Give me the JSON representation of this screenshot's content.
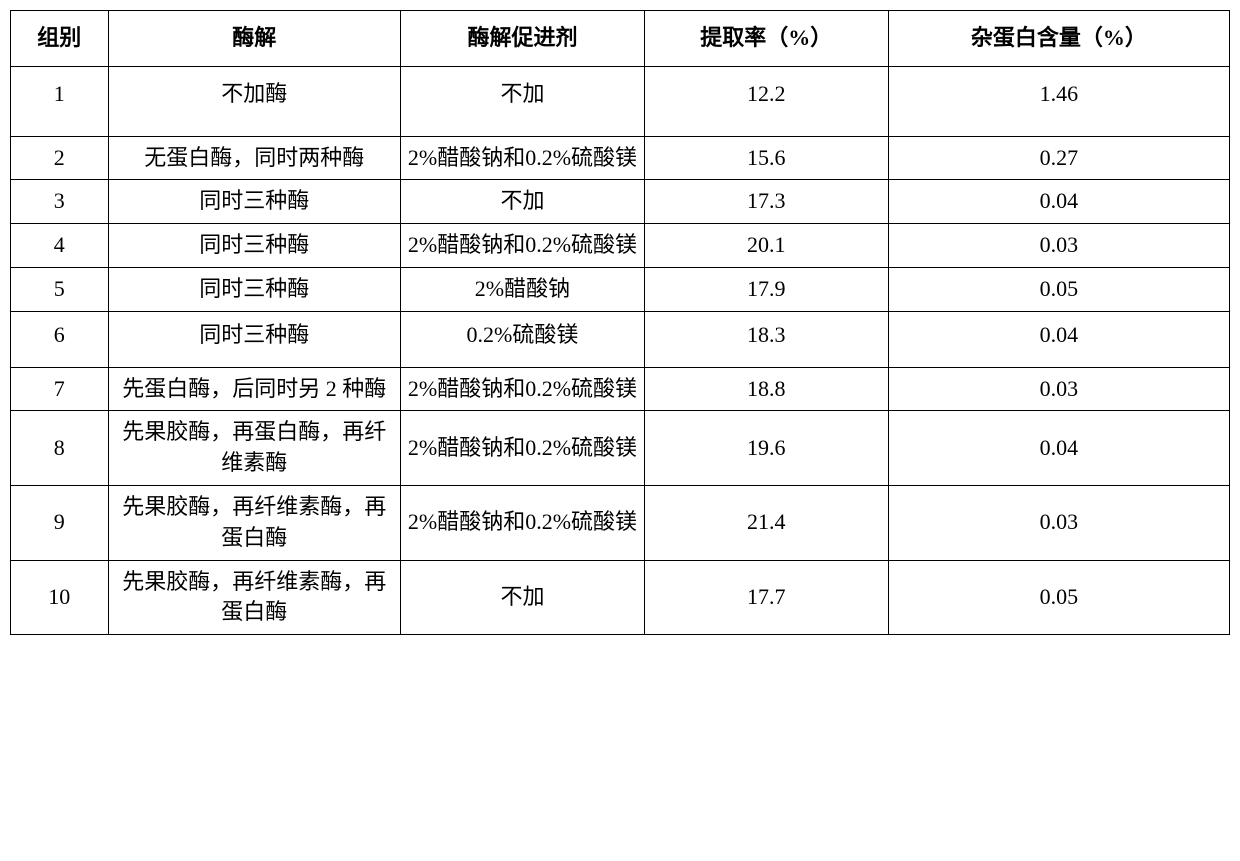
{
  "table": {
    "columns": [
      "组别",
      "酶解",
      "酶解促进剂",
      "提取率（%）",
      "杂蛋白含量（%）"
    ],
    "col_widths": [
      "8%",
      "24%",
      "20%",
      "20%",
      "28%"
    ],
    "header_fontsize": 22,
    "cell_fontsize": 22,
    "border_color": "#000000",
    "background_color": "#ffffff",
    "text_color": "#000000",
    "rows": [
      {
        "id": "1",
        "enzyme": "不加酶",
        "promoter": "不加",
        "extraction": "12.2",
        "protein": "1.46",
        "row_class": "tall"
      },
      {
        "id": "2",
        "enzyme": "无蛋白酶，同时两种酶",
        "promoter": "2%醋酸钠和0.2%硫酸镁",
        "extraction": "15.6",
        "protein": "0.27",
        "row_class": ""
      },
      {
        "id": "3",
        "enzyme": "同时三种酶",
        "promoter": "不加",
        "extraction": "17.3",
        "protein": "0.04",
        "row_class": ""
      },
      {
        "id": "4",
        "enzyme": "同时三种酶",
        "promoter": "2%醋酸钠和0.2%硫酸镁",
        "extraction": "20.1",
        "protein": "0.03",
        "row_class": ""
      },
      {
        "id": "5",
        "enzyme": "同时三种酶",
        "promoter": "2%醋酸钠",
        "extraction": "17.9",
        "protein": "0.05",
        "row_class": ""
      },
      {
        "id": "6",
        "enzyme": "同时三种酶",
        "promoter": "0.2%硫酸镁",
        "extraction": "18.3",
        "protein": "0.04",
        "row_class": "medium"
      },
      {
        "id": "7",
        "enzyme": "先蛋白酶，后同时另 2 种酶",
        "promoter": "2%醋酸钠和0.2%硫酸镁",
        "extraction": "18.8",
        "protein": "0.03",
        "row_class": ""
      },
      {
        "id": "8",
        "enzyme": "先果胶酶，再蛋白酶，再纤维素酶",
        "promoter": "2%醋酸钠和0.2%硫酸镁",
        "extraction": "19.6",
        "protein": "0.04",
        "row_class": ""
      },
      {
        "id": "9",
        "enzyme": "先果胶酶，再纤维素酶，再蛋白酶",
        "promoter": "2%醋酸钠和0.2%硫酸镁",
        "extraction": "21.4",
        "protein": "0.03",
        "row_class": ""
      },
      {
        "id": "10",
        "enzyme": "先果胶酶，再纤维素酶，再蛋白酶",
        "promoter": "不加",
        "extraction": "17.7",
        "protein": "0.05",
        "row_class": ""
      }
    ]
  }
}
